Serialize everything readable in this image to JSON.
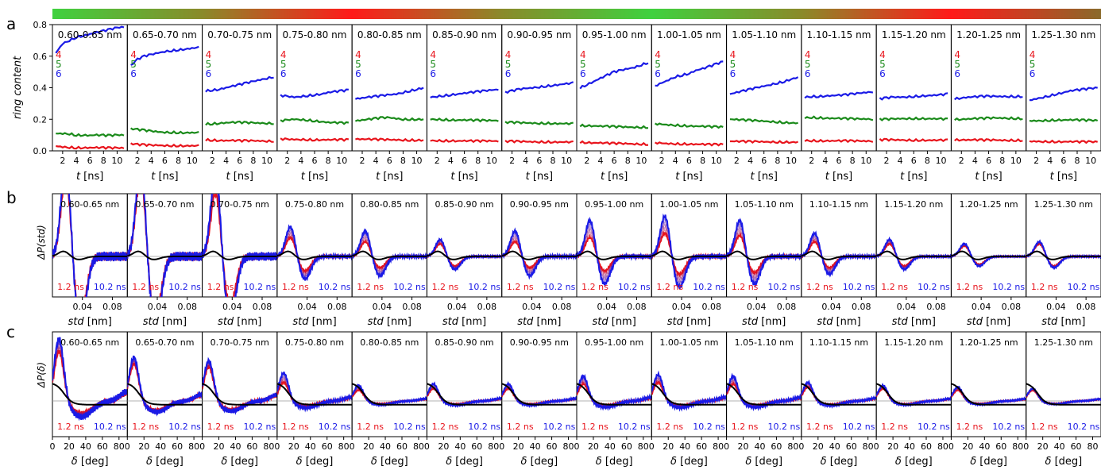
{
  "figure": {
    "panel_labels": [
      "a",
      "b",
      "c"
    ],
    "gradient_bar": {
      "colors": [
        "#3fd13f",
        "#8a8a2a",
        "#ff1a1a",
        "#8a8a2a",
        "#3fd13f",
        "#8a8a2a",
        "#ff1a1a",
        "#8a6a2a"
      ]
    }
  },
  "chart_data": [
    {
      "type": "line",
      "panel": "a",
      "ylabel": "ring content",
      "xlabel_prefix": "t",
      "xlabel_unit": " [ns]",
      "xticks": [
        "2",
        "4",
        "6",
        "8",
        "10"
      ],
      "xlim": [
        0.5,
        11.5
      ],
      "ylim": [
        0,
        0.8
      ],
      "yticks": [
        "0.0",
        "0.2",
        "0.4",
        "0.6",
        "0.8"
      ],
      "legend": [
        {
          "label": "4",
          "color": "#e8141c"
        },
        {
          "label": "5",
          "color": "#1a8a1a"
        },
        {
          "label": "6",
          "color": "#1a1ae6"
        }
      ],
      "x": [
        1,
        2,
        3,
        4,
        5,
        6,
        7,
        8,
        9,
        10,
        11
      ],
      "subplots": [
        {
          "title": "0.60-0.65 nm",
          "r4": [
            0.03,
            0.025,
            0.022,
            0.02,
            0.02,
            0.02,
            0.02,
            0.019,
            0.018,
            0.018,
            0.018
          ],
          "r5": [
            0.11,
            0.11,
            0.108,
            0.1,
            0.1,
            0.098,
            0.1,
            0.098,
            0.097,
            0.1,
            0.1
          ],
          "r6": [
            0.62,
            0.68,
            0.7,
            0.72,
            0.73,
            0.74,
            0.75,
            0.76,
            0.77,
            0.78,
            0.785
          ]
        },
        {
          "title": "0.65-0.70 nm",
          "r4": [
            0.045,
            0.04,
            0.038,
            0.035,
            0.035,
            0.034,
            0.033,
            0.033,
            0.032,
            0.032,
            0.032
          ],
          "r5": [
            0.14,
            0.135,
            0.13,
            0.125,
            0.12,
            0.118,
            0.117,
            0.116,
            0.115,
            0.115,
            0.115
          ],
          "r6": [
            0.54,
            0.58,
            0.6,
            0.61,
            0.62,
            0.63,
            0.635,
            0.64,
            0.645,
            0.65,
            0.655
          ]
        },
        {
          "title": "0.70-0.75 nm",
          "r4": [
            0.07,
            0.068,
            0.066,
            0.065,
            0.065,
            0.064,
            0.064,
            0.063,
            0.063,
            0.062,
            0.062
          ],
          "r5": [
            0.17,
            0.172,
            0.175,
            0.178,
            0.18,
            0.18,
            0.178,
            0.177,
            0.176,
            0.175,
            0.175
          ],
          "r6": [
            0.38,
            0.385,
            0.39,
            0.4,
            0.41,
            0.42,
            0.43,
            0.44,
            0.45,
            0.46,
            0.47
          ]
        },
        {
          "title": "0.75-0.80 nm",
          "r4": [
            0.075,
            0.073,
            0.072,
            0.072,
            0.071,
            0.07,
            0.07,
            0.07,
            0.07,
            0.07,
            0.07
          ],
          "r5": [
            0.19,
            0.195,
            0.2,
            0.198,
            0.195,
            0.19,
            0.185,
            0.18,
            0.178,
            0.177,
            0.175
          ],
          "r6": [
            0.35,
            0.345,
            0.34,
            0.345,
            0.35,
            0.355,
            0.36,
            0.37,
            0.375,
            0.38,
            0.385
          ]
        },
        {
          "title": "0.80-0.85 nm",
          "r4": [
            0.075,
            0.074,
            0.073,
            0.072,
            0.071,
            0.07,
            0.07,
            0.069,
            0.068,
            0.068,
            0.068
          ],
          "r5": [
            0.19,
            0.195,
            0.2,
            0.205,
            0.21,
            0.21,
            0.205,
            0.2,
            0.2,
            0.2,
            0.2
          ],
          "r6": [
            0.33,
            0.335,
            0.34,
            0.345,
            0.35,
            0.355,
            0.36,
            0.37,
            0.38,
            0.39,
            0.4
          ]
        },
        {
          "title": "0.85-0.90 nm",
          "r4": [
            0.065,
            0.065,
            0.064,
            0.064,
            0.063,
            0.063,
            0.062,
            0.062,
            0.062,
            0.062,
            0.062
          ],
          "r5": [
            0.2,
            0.2,
            0.198,
            0.196,
            0.195,
            0.195,
            0.194,
            0.193,
            0.192,
            0.192,
            0.192
          ],
          "r6": [
            0.34,
            0.345,
            0.35,
            0.355,
            0.36,
            0.365,
            0.37,
            0.375,
            0.38,
            0.385,
            0.39
          ]
        },
        {
          "title": "0.90-0.95 nm",
          "r4": [
            0.06,
            0.06,
            0.059,
            0.058,
            0.058,
            0.057,
            0.057,
            0.056,
            0.056,
            0.055,
            0.055
          ],
          "r5": [
            0.18,
            0.18,
            0.178,
            0.177,
            0.176,
            0.175,
            0.175,
            0.174,
            0.173,
            0.172,
            0.172
          ],
          "r6": [
            0.37,
            0.38,
            0.39,
            0.395,
            0.4,
            0.405,
            0.41,
            0.415,
            0.42,
            0.425,
            0.43
          ]
        },
        {
          "title": "0.95-1.00 nm",
          "r4": [
            0.055,
            0.053,
            0.051,
            0.05,
            0.048,
            0.047,
            0.046,
            0.045,
            0.044,
            0.043,
            0.042
          ],
          "r5": [
            0.16,
            0.16,
            0.158,
            0.156,
            0.155,
            0.153,
            0.152,
            0.15,
            0.15,
            0.15,
            0.15
          ],
          "r6": [
            0.4,
            0.42,
            0.44,
            0.46,
            0.48,
            0.5,
            0.51,
            0.52,
            0.53,
            0.545,
            0.56
          ]
        },
        {
          "title": "1.00-1.05 nm",
          "r4": [
            0.05,
            0.048,
            0.046,
            0.045,
            0.044,
            0.043,
            0.042,
            0.041,
            0.04,
            0.04,
            0.04
          ],
          "r5": [
            0.17,
            0.168,
            0.165,
            0.163,
            0.16,
            0.158,
            0.156,
            0.155,
            0.153,
            0.152,
            0.15
          ],
          "r6": [
            0.41,
            0.43,
            0.45,
            0.47,
            0.48,
            0.49,
            0.51,
            0.52,
            0.535,
            0.55,
            0.565
          ]
        },
        {
          "title": "1.05-1.10 nm",
          "r4": [
            0.06,
            0.06,
            0.059,
            0.058,
            0.058,
            0.057,
            0.057,
            0.056,
            0.056,
            0.055,
            0.055
          ],
          "r5": [
            0.2,
            0.198,
            0.195,
            0.193,
            0.19,
            0.188,
            0.186,
            0.183,
            0.18,
            0.178,
            0.175
          ],
          "r6": [
            0.36,
            0.37,
            0.38,
            0.39,
            0.4,
            0.41,
            0.42,
            0.43,
            0.44,
            0.455,
            0.465
          ]
        },
        {
          "title": "1.10-1.15 nm",
          "r4": [
            0.065,
            0.065,
            0.064,
            0.064,
            0.063,
            0.063,
            0.063,
            0.062,
            0.062,
            0.062,
            0.062
          ],
          "r5": [
            0.21,
            0.212,
            0.21,
            0.208,
            0.206,
            0.205,
            0.204,
            0.203,
            0.202,
            0.202,
            0.2
          ],
          "r6": [
            0.34,
            0.345,
            0.345,
            0.348,
            0.35,
            0.352,
            0.355,
            0.36,
            0.365,
            0.37,
            0.375
          ]
        },
        {
          "title": "1.15-1.20 nm",
          "r4": [
            0.07,
            0.07,
            0.069,
            0.069,
            0.068,
            0.068,
            0.068,
            0.067,
            0.067,
            0.067,
            0.067
          ],
          "r5": [
            0.2,
            0.2,
            0.202,
            0.204,
            0.205,
            0.205,
            0.205,
            0.204,
            0.203,
            0.202,
            0.2
          ],
          "r6": [
            0.33,
            0.335,
            0.34,
            0.34,
            0.342,
            0.345,
            0.348,
            0.35,
            0.352,
            0.355,
            0.36
          ]
        },
        {
          "title": "1.20-1.25 nm",
          "r4": [
            0.07,
            0.07,
            0.069,
            0.069,
            0.068,
            0.068,
            0.068,
            0.067,
            0.067,
            0.067,
            0.067
          ],
          "r5": [
            0.2,
            0.2,
            0.202,
            0.204,
            0.205,
            0.207,
            0.208,
            0.208,
            0.207,
            0.206,
            0.205
          ],
          "r6": [
            0.33,
            0.335,
            0.34,
            0.342,
            0.345,
            0.345,
            0.345,
            0.345,
            0.345,
            0.345,
            0.345
          ]
        },
        {
          "title": "1.25-1.30 nm",
          "r4": [
            0.06,
            0.06,
            0.059,
            0.059,
            0.058,
            0.058,
            0.058,
            0.057,
            0.057,
            0.057,
            0.057
          ],
          "r5": [
            0.19,
            0.19,
            0.192,
            0.194,
            0.195,
            0.196,
            0.196,
            0.195,
            0.194,
            0.193,
            0.192
          ],
          "r6": [
            0.32,
            0.33,
            0.34,
            0.35,
            0.36,
            0.37,
            0.38,
            0.385,
            0.39,
            0.395,
            0.4
          ]
        }
      ]
    },
    {
      "type": "line",
      "panel": "b",
      "ylabel": "ΔP(std)",
      "xlabel_prefix": "std",
      "xlabel_unit": " [nm]",
      "xticks": [
        "0.04",
        "0.08"
      ],
      "xtick_values": [
        0.04,
        0.08
      ],
      "xlim": [
        0,
        0.1
      ],
      "series_labels": [
        {
          "label": "1.2 ns",
          "color": "#e8141c"
        },
        {
          "label": "10.2 ns",
          "color": "#1a1ae6"
        }
      ],
      "titles": [
        "0.60-0.65 nm",
        "0.65-0.70 nm",
        "0.70-0.75 nm",
        "0.75-0.80 nm",
        "0.80-0.85 nm",
        "0.85-0.90 nm",
        "0.90-0.95 nm",
        "0.95-1.00 nm",
        "1.00-1.05 nm",
        "1.05-1.10 nm",
        "1.10-1.15 nm",
        "1.15-1.20 nm",
        "1.20-1.25 nm",
        "1.25-1.30 nm"
      ],
      "amplitude_10_2ns": [
        2.2,
        2.2,
        2.0,
        0.7,
        0.6,
        0.4,
        0.6,
        0.85,
        0.95,
        0.85,
        0.55,
        0.4,
        0.3,
        0.35
      ],
      "amplitude_1_2ns": [
        1.9,
        1.9,
        1.5,
        0.45,
        0.35,
        0.3,
        0.35,
        0.45,
        0.55,
        0.5,
        0.35,
        0.3,
        0.25,
        0.3
      ],
      "reference_amplitude": 0.12
    },
    {
      "type": "line",
      "panel": "c",
      "ylabel": "ΔP(δ)",
      "xlabel_prefix": "δ",
      "xlabel_unit": " [deg]",
      "xticks": [
        "0",
        "20",
        "40",
        "60",
        "80"
      ],
      "xtick_values": [
        0,
        20,
        40,
        60,
        80
      ],
      "xlim": [
        0,
        90
      ],
      "series_labels": [
        {
          "label": "1.2 ns",
          "color": "#e8141c"
        },
        {
          "label": "10.2 ns",
          "color": "#1a1ae6"
        }
      ],
      "titles": [
        "0.60-0.65 nm",
        "0.65-0.70 nm",
        "0.70-0.75 nm",
        "0.75-0.80 nm",
        "0.80-0.85 nm",
        "0.85-0.90 nm",
        "0.90-0.95 nm",
        "0.95-1.00 nm",
        "1.00-1.05 nm",
        "1.05-1.10 nm",
        "1.10-1.15 nm",
        "1.15-1.20 nm",
        "1.20-1.25 nm",
        "1.25-1.30 nm"
      ],
      "peak_10_2ns": [
        2.0,
        1.4,
        1.3,
        0.9,
        0.5,
        0.55,
        0.55,
        0.8,
        0.85,
        0.8,
        0.6,
        0.5,
        0.45,
        0.4
      ],
      "peak_1_2ns": [
        1.6,
        1.2,
        1.1,
        0.6,
        0.35,
        0.4,
        0.4,
        0.55,
        0.6,
        0.55,
        0.45,
        0.4,
        0.35,
        0.35
      ],
      "reference_peak": 0.7
    }
  ]
}
